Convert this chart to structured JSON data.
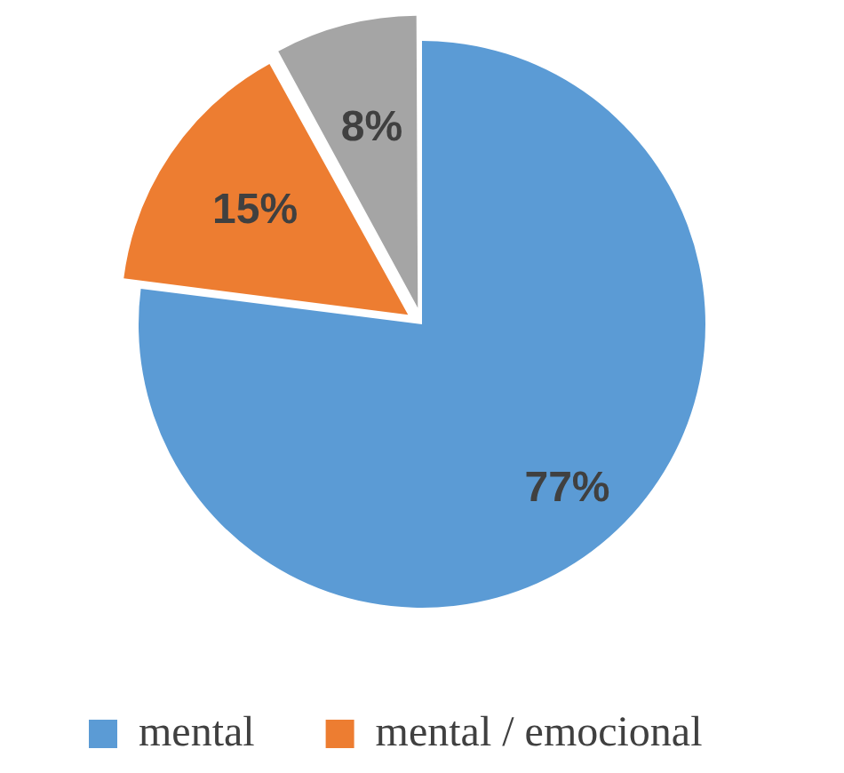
{
  "chart_data": {
    "type": "pie",
    "categories": [
      "mental",
      "mental / emocional",
      null
    ],
    "values": [
      77,
      15,
      8
    ],
    "colors": [
      "#5b9bd5",
      "#ed7d31",
      "#a5a5a5"
    ],
    "value_labels": [
      "77%",
      "15%",
      "8%"
    ],
    "legend": "bottom"
  }
}
